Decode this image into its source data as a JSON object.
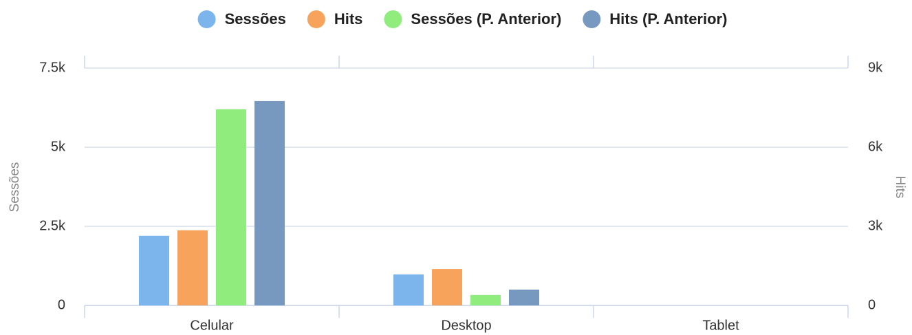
{
  "chart_data": {
    "type": "bar",
    "categories": [
      "Celular",
      "Desktop",
      "Tablet"
    ],
    "series": [
      {
        "name": "Sessões",
        "color": "#7cb5ec",
        "values": [
          2200,
          980,
          0
        ]
      },
      {
        "name": "Hits",
        "color": "#f7a35c",
        "axis": "y2",
        "values": [
          2850,
          1380,
          0
        ]
      },
      {
        "name": "Sessões (P. Anterior)",
        "color": "#90ed7d",
        "values": [
          6200,
          330,
          0
        ]
      },
      {
        "name": "Hits (P. Anterior)",
        "color": "#7798bf",
        "axis": "y2",
        "values": [
          7750,
          600,
          0
        ]
      }
    ],
    "ylabel": "Sessões",
    "y2label": "Hits",
    "ylim": [
      0,
      7500
    ],
    "yticks": [
      0,
      {
        "value": 2500,
        "label": "2.5k"
      },
      {
        "value": 5000,
        "label": "5k"
      },
      {
        "value": 7500,
        "label": "7.5k"
      }
    ],
    "y2lim": [
      0,
      9000
    ],
    "y2ticks": [
      0,
      {
        "value": 3000,
        "label": "3k"
      },
      {
        "value": 6000,
        "label": "6k"
      },
      {
        "value": 9000,
        "label": "9k"
      }
    ],
    "grid": true
  }
}
